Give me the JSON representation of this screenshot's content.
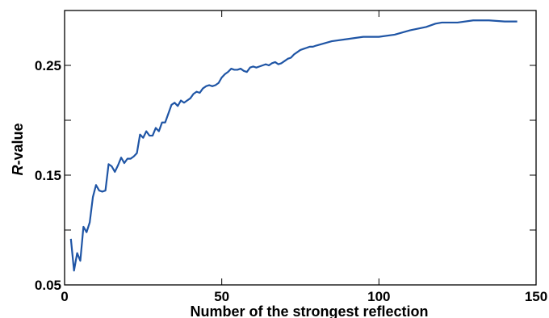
{
  "chart_data": {
    "type": "line",
    "xlabel": "Number of the strongest reflection",
    "ylabel_italic": "R",
    "ylabel_rest": "-value",
    "xlim": [
      0,
      150
    ],
    "ylim": [
      0.05,
      0.3
    ],
    "x_ticks": [
      {
        "value": 0,
        "label": "0"
      },
      {
        "value": 50,
        "label": "50"
      },
      {
        "value": 100,
        "label": "100"
      },
      {
        "value": 150,
        "label": "150"
      }
    ],
    "y_ticks": [
      {
        "value": 0.05,
        "label": "0.05"
      },
      {
        "value": 0.1,
        "label": ""
      },
      {
        "value": 0.15,
        "label": "0.15"
      },
      {
        "value": 0.2,
        "label": ""
      },
      {
        "value": 0.25,
        "label": "0.25"
      }
    ],
    "grid": false,
    "line_color": "#1f55a5",
    "series": [
      {
        "x": [
          2,
          3,
          4,
          5,
          6,
          7,
          8,
          9,
          10,
          11,
          12,
          13,
          14,
          15,
          16,
          17,
          18,
          19,
          20,
          21,
          22,
          23,
          24,
          25,
          26,
          27,
          28,
          29,
          30,
          31,
          32,
          33,
          34,
          35,
          36,
          37,
          38,
          39,
          40,
          41,
          42,
          43,
          44,
          45,
          46,
          47,
          48,
          49,
          50,
          51,
          52,
          53,
          54,
          55,
          56,
          57,
          58,
          59,
          60,
          61,
          62,
          63,
          64,
          65,
          66,
          67,
          68,
          69,
          70,
          71,
          72,
          73,
          74,
          75,
          76,
          77,
          78,
          79,
          80,
          85,
          90,
          95,
          100,
          105,
          110,
          115,
          118,
          120,
          125,
          130,
          135,
          140,
          144
        ],
        "y": [
          0.092,
          0.063,
          0.079,
          0.072,
          0.103,
          0.098,
          0.107,
          0.13,
          0.141,
          0.136,
          0.135,
          0.136,
          0.16,
          0.158,
          0.153,
          0.159,
          0.166,
          0.161,
          0.165,
          0.165,
          0.167,
          0.17,
          0.187,
          0.184,
          0.19,
          0.186,
          0.186,
          0.193,
          0.19,
          0.198,
          0.198,
          0.206,
          0.214,
          0.216,
          0.213,
          0.218,
          0.216,
          0.218,
          0.22,
          0.224,
          0.226,
          0.225,
          0.229,
          0.231,
          0.232,
          0.231,
          0.232,
          0.234,
          0.239,
          0.242,
          0.244,
          0.247,
          0.246,
          0.246,
          0.247,
          0.245,
          0.244,
          0.248,
          0.249,
          0.248,
          0.249,
          0.25,
          0.251,
          0.25,
          0.252,
          0.253,
          0.251,
          0.252,
          0.254,
          0.256,
          0.257,
          0.26,
          0.262,
          0.264,
          0.265,
          0.266,
          0.267,
          0.267,
          0.268,
          0.272,
          0.274,
          0.276,
          0.276,
          0.278,
          0.282,
          0.285,
          0.288,
          0.289,
          0.289,
          0.291,
          0.291,
          0.29,
          0.29
        ]
      }
    ]
  }
}
